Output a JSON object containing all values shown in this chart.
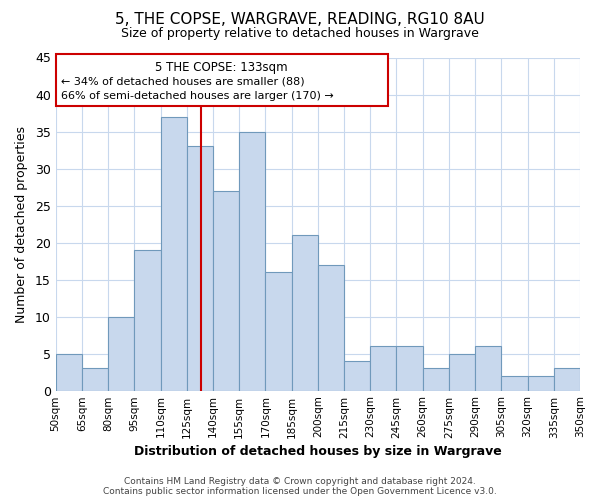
{
  "title": "5, THE COPSE, WARGRAVE, READING, RG10 8AU",
  "subtitle": "Size of property relative to detached houses in Wargrave",
  "xlabel": "Distribution of detached houses by size in Wargrave",
  "ylabel": "Number of detached properties",
  "bar_edges": [
    50,
    65,
    80,
    95,
    110,
    125,
    140,
    155,
    170,
    185,
    200,
    215,
    230,
    245,
    260,
    275,
    290,
    305,
    320,
    335,
    350
  ],
  "bar_heights": [
    5,
    3,
    10,
    19,
    37,
    33,
    27,
    35,
    16,
    21,
    17,
    4,
    6,
    6,
    3,
    5,
    6,
    2,
    2,
    3
  ],
  "bar_color": "#c8d8ed",
  "bar_edge_color": "#7099bb",
  "reference_line_x": 133,
  "reference_line_color": "#cc0000",
  "ylim": [
    0,
    45
  ],
  "yticks": [
    0,
    5,
    10,
    15,
    20,
    25,
    30,
    35,
    40,
    45
  ],
  "annotation_title": "5 THE COPSE: 133sqm",
  "annotation_line1": "← 34% of detached houses are smaller (88)",
  "annotation_line2": "66% of semi-detached houses are larger (170) →",
  "footer_line1": "Contains HM Land Registry data © Crown copyright and database right 2024.",
  "footer_line2": "Contains public sector information licensed under the Open Government Licence v3.0.",
  "background_color": "#ffffff",
  "grid_color": "#c8d8ed",
  "tick_labels": [
    "50sqm",
    "65sqm",
    "80sqm",
    "95sqm",
    "110sqm",
    "125sqm",
    "140sqm",
    "155sqm",
    "170sqm",
    "185sqm",
    "200sqm",
    "215sqm",
    "230sqm",
    "245sqm",
    "260sqm",
    "275sqm",
    "290sqm",
    "305sqm",
    "320sqm",
    "335sqm",
    "350sqm"
  ]
}
